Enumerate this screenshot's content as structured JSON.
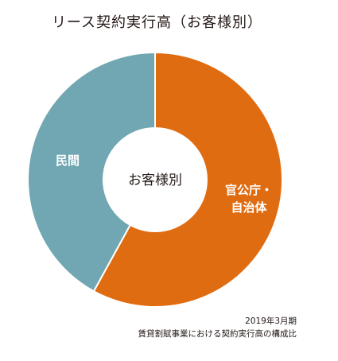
{
  "chart_data": {
    "type": "pie",
    "title": "リース契約実行高（お客様別）",
    "center_label": "お客様別",
    "slices": [
      {
        "label_lines": [
          "官公庁・",
          "自治体"
        ],
        "value": 58,
        "color": "#e06c12"
      },
      {
        "label_lines": [
          "民間"
        ],
        "value": 42,
        "color": "#71a7b2"
      }
    ],
    "legend": "none"
  },
  "notes": {
    "period": "2019年3月期",
    "description": "賃貸割賦事業における契約実行高の構成比"
  }
}
